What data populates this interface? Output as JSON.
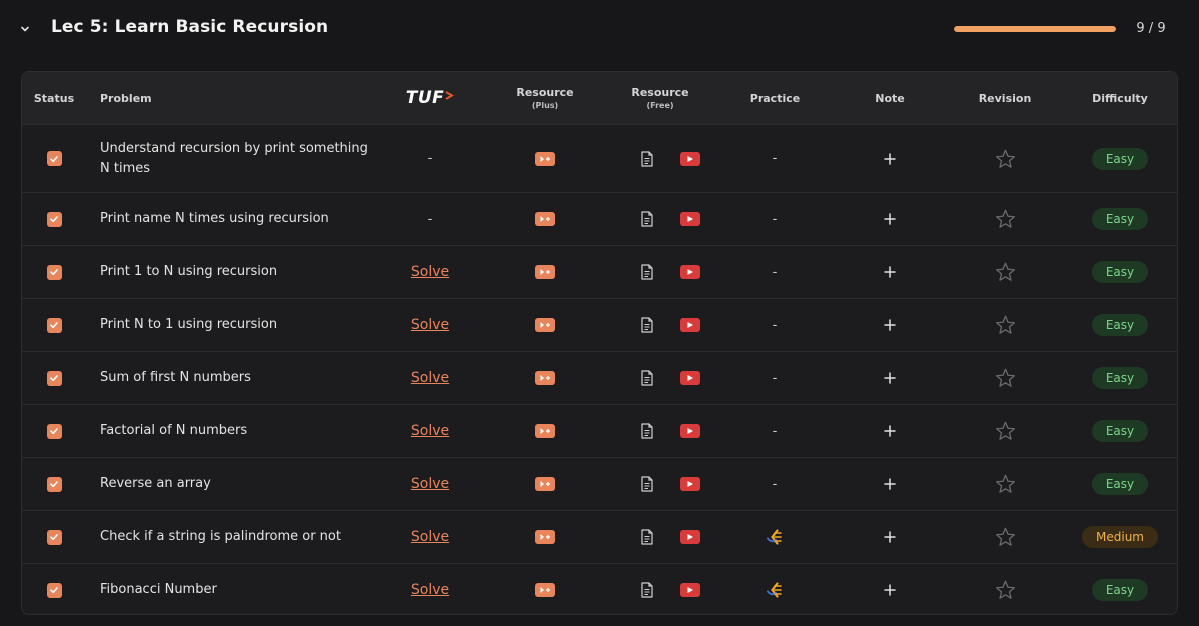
{
  "lecture": {
    "title": "Lec 5: Learn Basic Recursion",
    "progress_fraction": 1.0,
    "progress_text": "9 / 9"
  },
  "columns": {
    "status": "Status",
    "problem": "Problem",
    "tuf": "TUF",
    "resource_plus": "Resource",
    "resource_plus_sub": "(Plus)",
    "resource_free": "Resource",
    "resource_free_sub": "(Free)",
    "practice": "Practice",
    "note": "Note",
    "revision": "Revision",
    "difficulty": "Difficulty"
  },
  "rows": [
    {
      "problem": "Understand recursion by print something N times",
      "tuf": "-",
      "practice": "-",
      "difficulty": "Easy"
    },
    {
      "problem": "Print name N times using recursion",
      "tuf": "-",
      "practice": "-",
      "difficulty": "Easy"
    },
    {
      "problem": "Print 1 to N using recursion",
      "tuf": "Solve",
      "practice": "-",
      "difficulty": "Easy"
    },
    {
      "problem": "Print N to 1 using recursion",
      "tuf": "Solve",
      "practice": "-",
      "difficulty": "Easy"
    },
    {
      "problem": "Sum of first N numbers",
      "tuf": "Solve",
      "practice": "-",
      "difficulty": "Easy"
    },
    {
      "problem": "Factorial of N numbers",
      "tuf": "Solve",
      "practice": "-",
      "difficulty": "Easy"
    },
    {
      "problem": "Reverse an array",
      "tuf": "Solve",
      "practice": "-",
      "difficulty": "Easy"
    },
    {
      "problem": "Check if a string is palindrome or not",
      "tuf": "Solve",
      "practice": "codestudio-icon",
      "difficulty": "Medium"
    },
    {
      "problem": "Fibonacci Number",
      "tuf": "Solve",
      "practice": "codestudio-icon",
      "difficulty": "Easy"
    }
  ],
  "colors": {
    "accent": "#e8855a",
    "progress": "#f0a060",
    "youtube": "#d93a3a",
    "easy": "#7ed48a",
    "medium": "#f0b24a"
  },
  "icons": {
    "collapse": "chevron-down-icon",
    "status": "checkbox-checked-icon",
    "resource_plus": "video-plus-icon",
    "article": "document-icon",
    "video": "youtube-icon",
    "note": "plus-icon",
    "revision": "star-icon"
  }
}
